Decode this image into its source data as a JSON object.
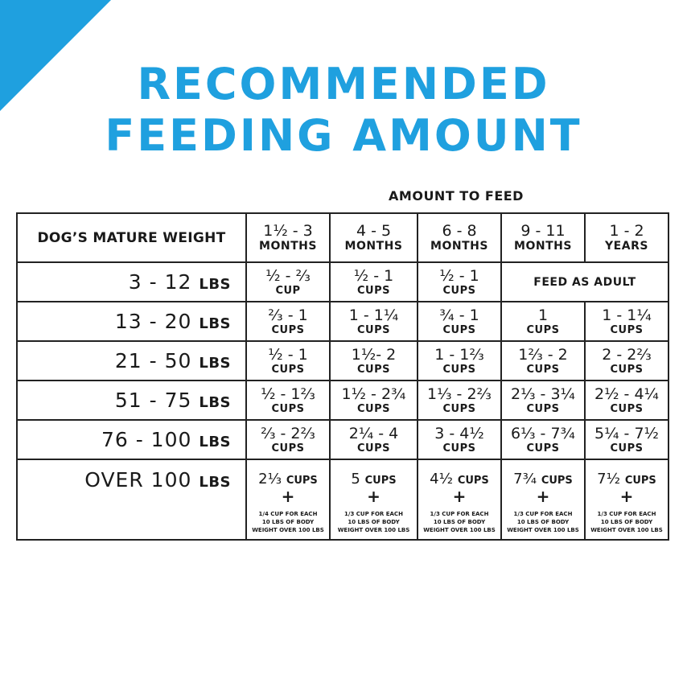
{
  "title": {
    "line1": "RECOMMENDED",
    "line2": "FEEDING AMOUNT"
  },
  "subhead": "AMOUNT TO FEED",
  "header": {
    "weight_label": "DOG’S MATURE WEIGHT",
    "ages": [
      {
        "top": "1½ - 3",
        "bottom": "MONTHS"
      },
      {
        "top": "4 - 5",
        "bottom": "MONTHS"
      },
      {
        "top": "6 - 8",
        "bottom": "MONTHS"
      },
      {
        "top": "9 - 11",
        "bottom": "MONTHS"
      },
      {
        "top": "1 - 2",
        "bottom": "YEARS"
      }
    ]
  },
  "rows": [
    {
      "weight": "3 - 12",
      "unit": "LBS",
      "cells": [
        {
          "amount": "½ - ⅔",
          "unit": "CUP"
        },
        {
          "amount": "½ - 1",
          "unit": "CUPS"
        },
        {
          "amount": "½ - 1",
          "unit": "CUPS"
        }
      ],
      "adult": "FEED AS ADULT"
    },
    {
      "weight": "13 - 20",
      "unit": "LBS",
      "cells": [
        {
          "amount": "⅔ - 1",
          "unit": "CUPS"
        },
        {
          "amount": "1 - 1¼",
          "unit": "CUPS"
        },
        {
          "amount": "¾ - 1",
          "unit": "CUPS"
        },
        {
          "amount": "1",
          "unit": "CUPS"
        },
        {
          "amount": "1 - 1¼",
          "unit": "CUPS"
        }
      ]
    },
    {
      "weight": "21 - 50",
      "unit": "LBS",
      "cells": [
        {
          "amount": "½ - 1",
          "unit": "CUPS"
        },
        {
          "amount": "1½- 2",
          "unit": "CUPS"
        },
        {
          "amount": "1 - 1⅔",
          "unit": "CUPS"
        },
        {
          "amount": "1⅔ - 2",
          "unit": "CUPS"
        },
        {
          "amount": "2 - 2⅔",
          "unit": "CUPS"
        }
      ]
    },
    {
      "weight": "51 - 75",
      "unit": "LBS",
      "cells": [
        {
          "amount": "½ - 1⅔",
          "unit": "CUPS"
        },
        {
          "amount": "1½ - 2¾",
          "unit": "CUPS"
        },
        {
          "amount": "1⅓ - 2⅔",
          "unit": "CUPS"
        },
        {
          "amount": "2⅓ - 3¼",
          "unit": "CUPS"
        },
        {
          "amount": "2½ - 4¼",
          "unit": "CUPS"
        }
      ]
    },
    {
      "weight": "76 - 100",
      "unit": "LBS",
      "cells": [
        {
          "amount": "⅔ - 2⅔",
          "unit": "CUPS"
        },
        {
          "amount": "2¼ - 4",
          "unit": "CUPS"
        },
        {
          "amount": "3 - 4½",
          "unit": "CUPS"
        },
        {
          "amount": "6⅓ - 7¾",
          "unit": "CUPS"
        },
        {
          "amount": "5¼ - 7½",
          "unit": "CUPS"
        }
      ]
    }
  ],
  "over_row": {
    "weight": "OVER 100",
    "unit": "LBS",
    "cells": [
      {
        "amount": "2⅓",
        "unit": "CUPS",
        "plus": "+",
        "note": [
          "1/4 CUP FOR EACH",
          "10 LBS OF BODY",
          "WEIGHT OVER 100 LBS"
        ]
      },
      {
        "amount": "5",
        "unit": "CUPS",
        "plus": "+",
        "note": [
          "1/3 CUP FOR EACH",
          "10 LBS OF BODY",
          "WEIGHT OVER 100 LBS"
        ]
      },
      {
        "amount": "4½",
        "unit": "CUPS",
        "plus": "+",
        "note": [
          "1/3 CUP FOR EACH",
          "10 LBS OF BODY",
          "WEIGHT OVER 100 LBS"
        ]
      },
      {
        "amount": "7¾",
        "unit": "CUPS",
        "plus": "+",
        "note": [
          "1/3 CUP FOR EACH",
          "10 LBS OF BODY",
          "WEIGHT OVER 100 LBS"
        ]
      },
      {
        "amount": "7½",
        "unit": "CUPS",
        "plus": "+",
        "note": [
          "1/3 CUP FOR EACH",
          "10 LBS OF BODY",
          "WEIGHT OVER 100 LBS"
        ]
      }
    ]
  },
  "colors": {
    "accent": "#1fa0df",
    "text": "#1a1a1a"
  }
}
